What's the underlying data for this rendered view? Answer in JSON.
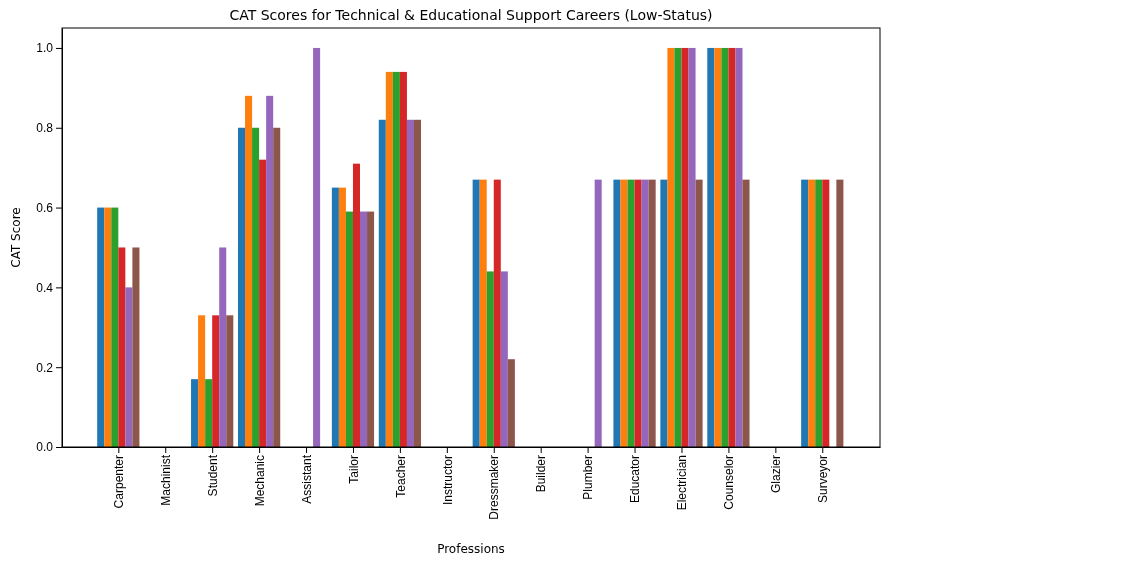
{
  "chart_data": {
    "type": "bar",
    "title": "CAT Scores for Technical & Educational Support Careers (Low-Status)",
    "xlabel": "Professions",
    "ylabel": "CAT Score",
    "categories": [
      "Carpenter",
      "Machinist",
      "Student",
      "Mechanic",
      "Assistant",
      "Tailor",
      "Teacher",
      "Instructor",
      "Dressmaker",
      "Builder",
      "Plumber",
      "Educator",
      "Electrician",
      "Counselor",
      "Glazier",
      "Surveyor"
    ],
    "series": [
      {
        "color": "#1f77b4",
        "values": [
          0.6,
          0,
          0.17,
          0.8,
          0,
          0.65,
          0.82,
          0,
          0.67,
          0,
          0,
          0.67,
          0.67,
          1.0,
          0,
          0.67
        ]
      },
      {
        "color": "#ff7f0e",
        "values": [
          0.6,
          0,
          0.33,
          0.88,
          0,
          0.65,
          0.94,
          0,
          0.67,
          0,
          0,
          0.67,
          1.0,
          1.0,
          0,
          0.67
        ]
      },
      {
        "color": "#2ca02c",
        "values": [
          0.6,
          0,
          0.17,
          0.8,
          0,
          0.59,
          0.94,
          0,
          0.44,
          0,
          0,
          0.67,
          1.0,
          1.0,
          0,
          0.67
        ]
      },
      {
        "color": "#d62728",
        "values": [
          0.5,
          0,
          0.33,
          0.72,
          0,
          0.71,
          0.94,
          0,
          0.67,
          0,
          0,
          0.67,
          1.0,
          1.0,
          0,
          0.67
        ]
      },
      {
        "color": "#9467bd",
        "values": [
          0.4,
          0,
          0.5,
          0.88,
          1.0,
          0.59,
          0.82,
          0,
          0.44,
          0,
          0.67,
          0.67,
          1.0,
          1.0,
          0,
          0
        ]
      },
      {
        "color": "#8c564b",
        "values": [
          0.5,
          0,
          0.33,
          0.8,
          0,
          0.59,
          0.82,
          0,
          0.22,
          0,
          0,
          0.67,
          0.67,
          0.67,
          0,
          0.67
        ]
      }
    ],
    "ylim": [
      0,
      1.05
    ],
    "yticks": [
      {
        "value": 0,
        "label": "0.0"
      },
      {
        "value": 0.2,
        "label": "0.2"
      },
      {
        "value": 0.4,
        "label": "0.4"
      },
      {
        "value": 0.6,
        "label": "0.6"
      },
      {
        "value": 0.8,
        "label": "0.8"
      },
      {
        "value": 1.0,
        "label": "1.0"
      }
    ],
    "grid": false,
    "legend": false
  }
}
